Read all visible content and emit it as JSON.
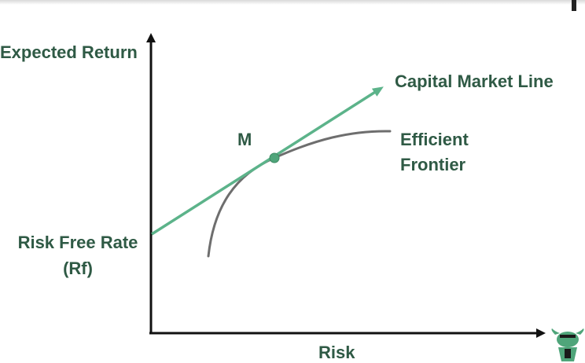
{
  "axes": {
    "y_label": "Expected Return",
    "x_label": "Risk"
  },
  "labels": {
    "cml": "Capital Market Line",
    "frontier_line1": "Efficient",
    "frontier_line2": "Frontier",
    "point_m": "M",
    "rf_line1": "Risk Free Rate",
    "rf_line2": "(Rf)"
  },
  "colors": {
    "text": "#2f5a45",
    "cml_line": "#5cb38a",
    "frontier": "#6e6e6e",
    "axis": "#111111",
    "point": "#4fa57a"
  },
  "logo": {
    "icon": "bull-mascot-icon"
  }
}
